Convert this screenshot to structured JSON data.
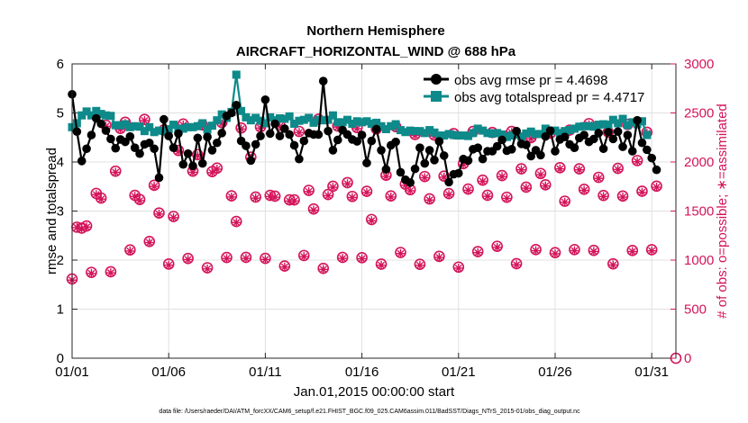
{
  "chart_data": {
    "type": "line",
    "title": "Northern Hemisphere",
    "subtitle": "AIRCRAFT_HORIZONTAL_WIND @ 688 hPa",
    "xlabel": "Jan.01,2015 00:00:00 start",
    "ylabel_left": "rmse and totalspread",
    "ylabel_right": "# of obs: o=possible; ∗=assimilated",
    "footer": "data file: /Users/raeder/DAI/ATM_forcXX/CAM6_setup/f.e21.FHIST_BGC.f09_025.CAM6assim.011/BadSST/Diags_NTrS_2015-01/obs_diag_output.nc",
    "x_ticks": [
      "01/01",
      "01/06",
      "01/11",
      "01/16",
      "01/21",
      "01/26",
      "01/31"
    ],
    "x_tick_days": [
      1,
      6,
      11,
      16,
      21,
      26,
      31
    ],
    "xlim": [
      1,
      32.25
    ],
    "ylim_left": [
      0,
      6
    ],
    "yticks_left": [
      "0",
      "1",
      "2",
      "3",
      "4",
      "5",
      "6"
    ],
    "ylim_right": [
      0,
      3000
    ],
    "yticks_right": [
      "0",
      "500",
      "1000",
      "1500",
      "2000",
      "2500",
      "3000"
    ],
    "colors": {
      "rmse": "#000000",
      "spread": "#0e8a8a",
      "obs": "#d4145a",
      "grid": "#e0e0e0"
    },
    "series": [
      {
        "name": "obs avg rmse pr = 4.4698",
        "axis": "left",
        "marker": "circle",
        "x_start": 1.0,
        "x_step": 0.25,
        "values": [
          5.38,
          4.62,
          4.02,
          4.27,
          4.55,
          4.89,
          4.78,
          4.64,
          4.47,
          4.28,
          4.46,
          4.41,
          4.52,
          4.29,
          4.17,
          4.36,
          4.39,
          4.27,
          3.68,
          4.87,
          4.53,
          4.29,
          4.58,
          3.95,
          4.17,
          3.92,
          4.49,
          3.97,
          4.51,
          4.24,
          4.39,
          4.59,
          4.94,
          5.0,
          5.16,
          4.43,
          4.33,
          4.03,
          4.36,
          4.53,
          5.27,
          4.58,
          4.78,
          4.53,
          4.68,
          4.56,
          4.34,
          4.06,
          4.43,
          4.59,
          4.56,
          4.56,
          5.65,
          4.63,
          4.24,
          4.45,
          4.65,
          4.56,
          4.46,
          4.42,
          4.55,
          3.98,
          4.43,
          4.67,
          4.24,
          3.85,
          4.34,
          4.41,
          3.79,
          3.64,
          3.58,
          3.86,
          4.29,
          3.97,
          4.24,
          4.04,
          4.42,
          4.13,
          3.59,
          3.75,
          3.77,
          4.06,
          4.03,
          4.26,
          4.29,
          4.06,
          4.22,
          4.22,
          4.32,
          4.45,
          4.23,
          4.26,
          4.63,
          4.37,
          4.35,
          4.12,
          4.24,
          4.14,
          4.52,
          4.64,
          4.22,
          4.46,
          4.51,
          4.36,
          4.29,
          4.49,
          4.55,
          4.41,
          4.47,
          4.59,
          4.27,
          4.61,
          4.47,
          4.62,
          4.31,
          4.55,
          4.22,
          4.85,
          4.39,
          4.25,
          4.08,
          3.84
        ]
      },
      {
        "name": "obs avg totalspread pr = 4.4717",
        "axis": "left",
        "marker": "square",
        "x_start": 1.0,
        "x_step": 0.25,
        "values": [
          4.71,
          4.79,
          4.95,
          5.03,
          4.95,
          5.04,
          4.98,
          4.95,
          4.94,
          4.75,
          4.75,
          4.77,
          4.71,
          4.73,
          4.72,
          4.63,
          4.71,
          4.61,
          4.64,
          4.63,
          4.67,
          4.76,
          4.68,
          4.68,
          4.71,
          4.71,
          4.73,
          4.79,
          4.66,
          4.74,
          4.85,
          4.97,
          4.9,
          5.02,
          5.78,
          5.04,
          4.91,
          4.85,
          4.9,
          4.84,
          4.79,
          4.91,
          4.85,
          4.89,
          4.88,
          4.93,
          4.78,
          4.84,
          4.86,
          4.9,
          4.8,
          4.86,
          4.85,
          4.86,
          4.95,
          4.81,
          4.81,
          4.86,
          4.78,
          4.83,
          4.81,
          4.83,
          4.78,
          4.8,
          4.73,
          4.67,
          4.73,
          4.77,
          4.65,
          4.61,
          4.64,
          4.63,
          4.63,
          4.59,
          4.65,
          4.6,
          4.54,
          4.54,
          4.57,
          4.55,
          4.54,
          4.54,
          4.53,
          4.59,
          4.68,
          4.64,
          4.59,
          4.58,
          4.59,
          4.56,
          4.51,
          4.54,
          4.56,
          4.52,
          4.58,
          4.62,
          4.57,
          4.57,
          4.68,
          4.63,
          4.64,
          4.59,
          4.63,
          4.65,
          4.68,
          4.72,
          4.73,
          4.73,
          4.72,
          4.76,
          4.77,
          4.76,
          4.86,
          4.79,
          4.88,
          4.75,
          4.81,
          4.77,
          4.83,
          4.55
        ]
      },
      {
        "name": "obs possible",
        "axis": "right",
        "marker": "open-circle",
        "x_start": 1.0,
        "x_step": 0.25,
        "values": [
          808,
          1336,
          1326,
          1348,
          875,
          1680,
          1633,
          2375,
          881,
          1907,
          2343,
          2405,
          1104,
          1660,
          1618,
          2434,
          1190,
          1763,
          1480,
          2327,
          960,
          1445,
          2118,
          2387,
          1017,
          1907,
          2075,
          2378,
          922,
          1902,
          1938,
          2402,
          1027,
          1655,
          1394,
          2347,
          1028,
          2050,
          1643,
          2358,
          1018,
          1660,
          1652,
          2374,
          940,
          1614,
          1614,
          2312,
          1047,
          1711,
          1521,
          2436,
          916,
          1669,
          1753,
          2367,
          1028,
          1790,
          1649,
          2351,
          1025,
          1701,
          1414,
          2337,
          959,
          1865,
          1654,
          2361,
          1078,
          1774,
          1718,
          2281,
          957,
          1852,
          1624,
          2275,
          1038,
          1856,
          1678,
          2290,
          929,
          1983,
          1724,
          2311,
          1087,
          1815,
          1661,
          2301,
          1141,
          1862,
          1641,
          2311,
          964,
          1931,
          1744,
          2249,
          1107,
          1883,
          1768,
          2294,
          1076,
          1942,
          1601,
          2325,
          1107,
          1931,
          1722,
          2391,
          1099,
          1844,
          1659,
          2305,
          962,
          1935,
          1653,
          2383,
          1098,
          2015,
          1702,
          2303,
          1106,
          1754
        ]
      },
      {
        "name": "obs assimilated",
        "axis": "right",
        "marker": "asterisk",
        "x_start": 1.0,
        "x_step": 0.25,
        "values": [
          796,
          1331,
          1319,
          1337,
          864,
          1668,
          1622,
          2364,
          870,
          1895,
          2332,
          2393,
          1092,
          1649,
          1606,
          2422,
          1179,
          1751,
          1469,
          2316,
          949,
          1433,
          2107,
          2376,
          1006,
          1895,
          2063,
          2367,
          910,
          1891,
          1927,
          2390,
          1016,
          1643,
          1383,
          2336,
          1017,
          2039,
          1632,
          2346,
          1006,
          1649,
          1641,
          2363,
          929,
          1602,
          1603,
          2301,
          1036,
          1699,
          1509,
          2425,
          905,
          1657,
          1742,
          2356,
          1017,
          1778,
          1638,
          2340,
          1014,
          1689,
          1402,
          2326,
          947,
          1853,
          1643,
          2350,
          1067,
          1762,
          1707,
          2270,
          946,
          1840,
          1612,
          2264,
          1027,
          1845,
          1667,
          2278,
          918,
          1972,
          1712,
          2300,
          1076,
          1803,
          1650,
          2290,
          1130,
          1851,
          1629,
          2300,
          952,
          1920,
          1733,
          2237,
          1096,
          1871,
          1756,
          2283,
          1065,
          1930,
          1590,
          2314,
          1096,
          1920,
          1711,
          2380,
          1088,
          1833,
          1648,
          2294,
          950,
          1924,
          1642,
          2372,
          1087,
          2003,
          1691,
          2292,
          1095,
          1743
        ]
      }
    ],
    "trailing_point": {
      "x": 32.25,
      "value": 0,
      "axis": "right"
    },
    "legend_position": "top-right"
  }
}
